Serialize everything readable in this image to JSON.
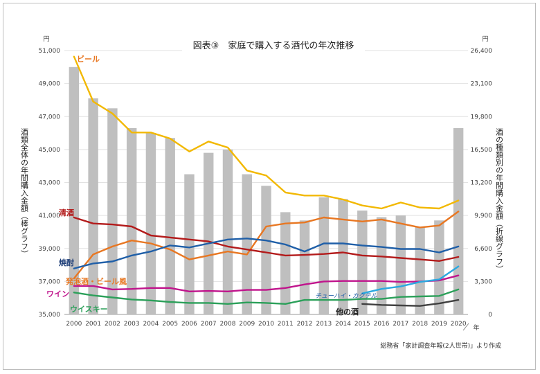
{
  "chart_data": {
    "type": "bar+line",
    "title": "図表③　家庭で購入する酒代の年次推移",
    "left_unit": "円",
    "right_unit": "円",
    "x_unit": "年",
    "ylabel_left": "酒類全体の年間購入金額（棒グラフ）",
    "ylabel_right": "酒の種類別の年間購入金額（折線グラフ）",
    "source": "総務省「家計調査年報(2人世帯)」より作成",
    "ylim_left": [
      35000,
      51000
    ],
    "ylim_right": [
      0,
      26400
    ],
    "yticks_left": [
      "35,000",
      "37,000",
      "39,000",
      "41,000",
      "43,000",
      "45,000",
      "47,000",
      "49,000",
      "51,000"
    ],
    "yticks_right": [
      "0",
      "3,300",
      "6,600",
      "9,900",
      "13,200",
      "16,500",
      "19,800",
      "23,100",
      "26,400"
    ],
    "categories": [
      "2000",
      "2001",
      "2002",
      "2003",
      "2004",
      "2005",
      "2006",
      "2007",
      "2008",
      "2009",
      "2010",
      "2011",
      "2012",
      "2013",
      "2014",
      "2015",
      "2016",
      "2017",
      "2018",
      "2019",
      "2020"
    ],
    "bars": {
      "name": "酒類全体",
      "color": "#bfbfbf",
      "values": [
        50000,
        48100,
        47500,
        46300,
        46000,
        45700,
        43500,
        44800,
        45000,
        43500,
        42800,
        41200,
        40700,
        42100,
        42000,
        41300,
        40900,
        41000,
        40300,
        40700,
        46300
      ]
    },
    "series": [
      {
        "name": "ビール",
        "color": "#f2b800",
        "values": [
          25800,
          21300,
          20100,
          18200,
          18200,
          17600,
          16300,
          17300,
          16700,
          14400,
          13900,
          12200,
          11900,
          11900,
          11500,
          10900,
          10600,
          11200,
          10700,
          10600,
          11400
        ]
      },
      {
        "name": "発泡酒・ビール風",
        "color": "#e87722",
        "values": [
          3600,
          6000,
          6800,
          7400,
          7100,
          6500,
          5500,
          5900,
          6300,
          6000,
          8800,
          9100,
          9200,
          9700,
          9500,
          9300,
          9500,
          9100,
          8700,
          8900,
          10300
        ]
      },
      {
        "name": "清酒",
        "color": "#b31b1b",
        "values": [
          9700,
          9100,
          9000,
          8800,
          7900,
          7700,
          7500,
          7300,
          6800,
          6500,
          6200,
          5900,
          5950,
          6050,
          6200,
          5900,
          5800,
          5650,
          5500,
          5350,
          5750
        ]
      },
      {
        "name": "焼酎",
        "color": "#1f5fa8",
        "values": [
          4600,
          5100,
          5300,
          5900,
          6300,
          6900,
          6700,
          7100,
          7500,
          7600,
          7400,
          7000,
          6300,
          7100,
          7100,
          6900,
          6750,
          6550,
          6550,
          6200,
          6800
        ]
      },
      {
        "name": "ワイン",
        "color": "#c0148c",
        "values": [
          2850,
          2850,
          2500,
          2550,
          2650,
          2650,
          2300,
          2350,
          2300,
          2450,
          2450,
          2650,
          3000,
          3300,
          3350,
          3350,
          3350,
          3250,
          3300,
          3400,
          3900
        ]
      },
      {
        "name": "ウイスキー",
        "color": "#2ca05a",
        "values": [
          2200,
          1900,
          1700,
          1500,
          1400,
          1250,
          1150,
          1150,
          1050,
          1200,
          1150,
          1050,
          1450,
          1450,
          1450,
          1550,
          1550,
          1750,
          1800,
          1850,
          2500
        ]
      },
      {
        "name": "チューハイ・カクテル",
        "color": "#2aa8e0",
        "values": [
          null,
          null,
          null,
          null,
          null,
          null,
          null,
          null,
          null,
          null,
          null,
          null,
          null,
          null,
          null,
          2100,
          2550,
          2800,
          3250,
          3500,
          4800
        ]
      },
      {
        "name": "他の酒",
        "color": "#404040",
        "values": [
          null,
          null,
          null,
          null,
          null,
          null,
          null,
          null,
          null,
          null,
          null,
          null,
          null,
          null,
          null,
          1050,
          950,
          900,
          850,
          1100,
          1450
        ]
      }
    ]
  }
}
